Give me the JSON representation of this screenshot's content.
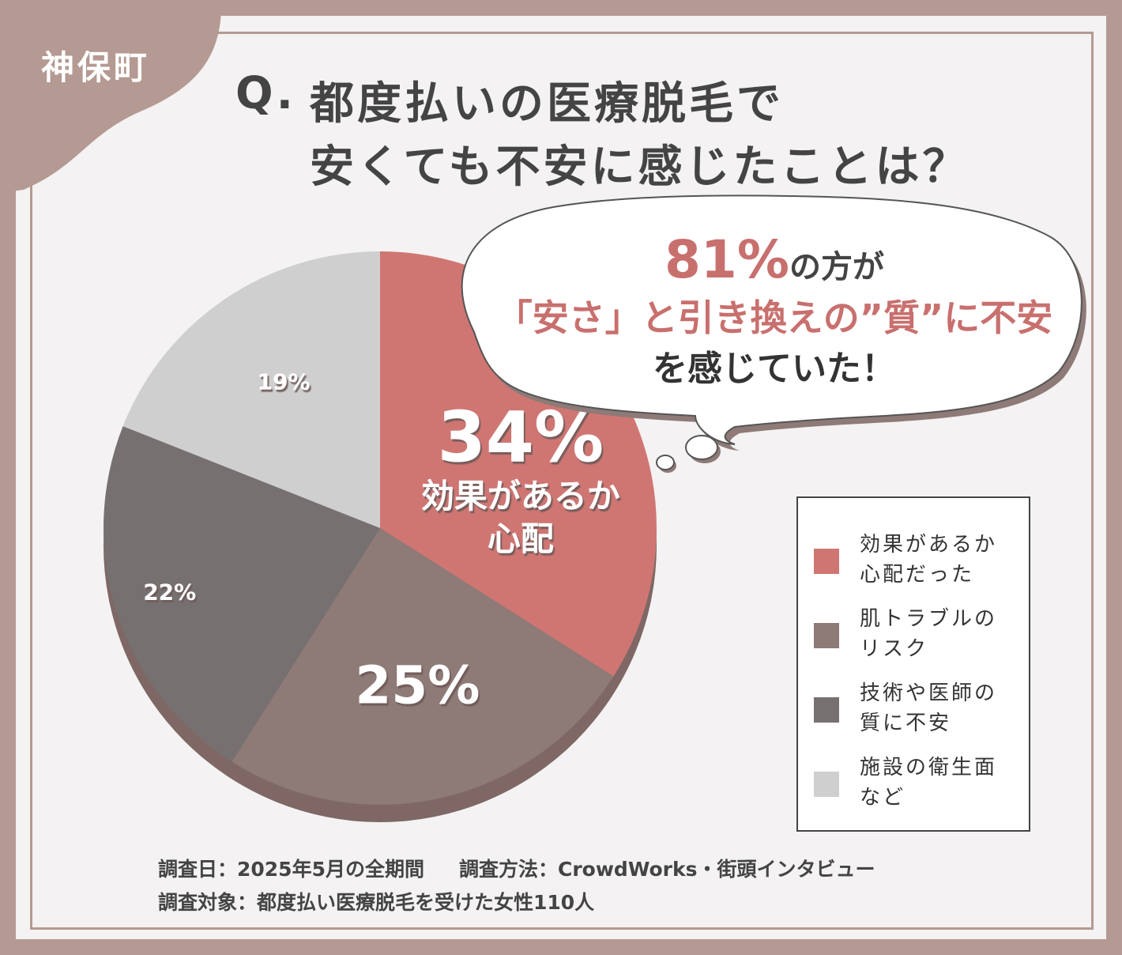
{
  "location": "神保町",
  "question": {
    "mark": "Q.",
    "line1": "都度払いの医療脱毛で",
    "line2": "安くても不安に感じたことは？"
  },
  "bubble": {
    "highlight": "81%",
    "line1_rest": "の方が",
    "line2": "「安さ」と引き換えの”質”に不安",
    "line3": "を感じていた！"
  },
  "colors": {
    "effect": "#cf7673",
    "skin": "#8e7a77",
    "tech": "#767170",
    "hygiene": "#cfcfcf",
    "frame": "#b49a92"
  },
  "chart_data": {
    "type": "pie",
    "categories": [
      "効果があるか心配だった",
      "肌トラブルのリスク",
      "技術や医師の質に不安",
      "施設の衛生面など"
    ],
    "values": [
      34,
      25,
      22,
      19
    ],
    "slice_labels": [
      "34%",
      "25%",
      "22%",
      "19%"
    ],
    "callout_text": "効果があるか心配",
    "legend_position": "right"
  },
  "legend": [
    {
      "line1": "効果があるか",
      "line2": "心配だった"
    },
    {
      "line1": "肌トラブルの",
      "line2": "リスク"
    },
    {
      "line1": "技術や医師の",
      "line2": "質に不安"
    },
    {
      "line1": "施設の衛生面",
      "line2": "など"
    }
  ],
  "footer": {
    "date": "調査日：2025年5月の全期間",
    "method": "調査方法：CrowdWorks・街頭インタビュー",
    "target": "調査対象：都度払い医療脱毛を受けた女性110人"
  }
}
